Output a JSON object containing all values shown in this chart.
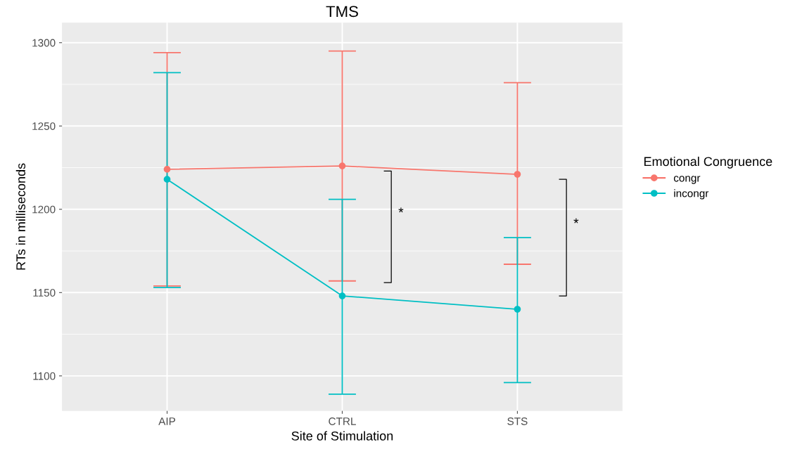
{
  "chart_data": {
    "type": "line",
    "title": "TMS",
    "xlabel": "Site of Stimulation",
    "ylabel": "RTs in milliseconds",
    "legend_title": "Emotional Congruence",
    "categories": [
      "AIP",
      "CTRL",
      "STS"
    ],
    "series": [
      {
        "name": "congr",
        "color": "#f8766d",
        "values": [
          1224,
          1226,
          1221
        ],
        "errors": [
          [
            1154,
            1294
          ],
          [
            1157,
            1295
          ],
          [
            1167,
            1276
          ]
        ]
      },
      {
        "name": "incongr",
        "color": "#00bfc4",
        "values": [
          1218,
          1148,
          1140
        ],
        "errors": [
          [
            1153,
            1282
          ],
          [
            1089,
            1206
          ],
          [
            1096,
            1183
          ]
        ]
      }
    ],
    "ylim": [
      1079,
      1312
    ],
    "yticks": [
      1100,
      1150,
      1200,
      1250,
      1300
    ],
    "annotations": [
      "*",
      "*"
    ],
    "grid": true,
    "legend": "right",
    "marker": "circle",
    "line_style": "solid"
  }
}
